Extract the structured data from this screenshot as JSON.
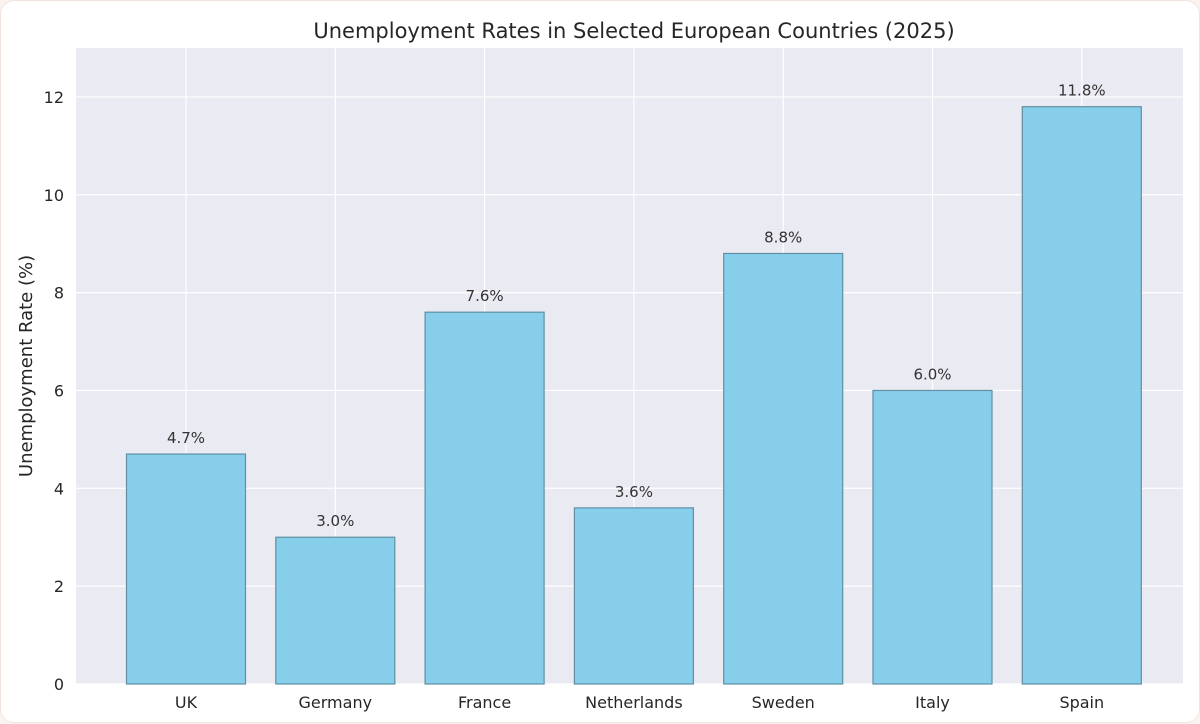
{
  "chart_data": {
    "type": "bar",
    "title": "Unemployment Rates in Selected European Countries (2025)",
    "xlabel": "",
    "ylabel": "Unemployment Rate (%)",
    "categories": [
      "UK",
      "Germany",
      "France",
      "Netherlands",
      "Sweden",
      "Italy",
      "Spain"
    ],
    "values": [
      4.7,
      3.0,
      7.6,
      3.6,
      8.8,
      6.0,
      11.8
    ],
    "data_labels": [
      "4.7%",
      "3.0%",
      "7.6%",
      "3.6%",
      "8.8%",
      "6.0%",
      "11.8%"
    ],
    "ylim": [
      0,
      13
    ],
    "yticks": [
      0,
      2,
      4,
      6,
      8,
      10,
      12
    ],
    "grid": true,
    "colors": {
      "bar_fill": "#87ceeb",
      "bar_edge": "#5f8fa3",
      "plot_background": "#eaeaf2",
      "grid": "#ffffff"
    }
  }
}
